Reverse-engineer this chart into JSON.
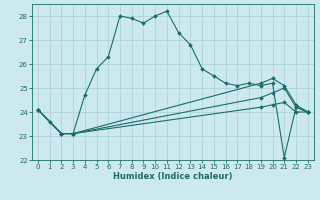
{
  "xlabel": "Humidex (Indice chaleur)",
  "ylabel": "",
  "xlim": [
    -0.5,
    23.5
  ],
  "ylim": [
    22,
    28.5
  ],
  "yticks": [
    22,
    23,
    24,
    25,
    26,
    27,
    28
  ],
  "xticks": [
    0,
    1,
    2,
    3,
    4,
    5,
    6,
    7,
    8,
    9,
    10,
    11,
    12,
    13,
    14,
    15,
    16,
    17,
    18,
    19,
    20,
    21,
    22,
    23
  ],
  "bg_color": "#cce9f0",
  "grid_color": "#afd4dc",
  "line_color": "#1a6e63",
  "lines": [
    {
      "x": [
        0,
        1,
        2,
        3,
        4,
        5,
        6,
        7,
        8,
        9,
        10,
        11,
        12,
        13,
        14,
        15,
        16,
        17,
        18,
        19,
        20,
        21,
        22,
        23
      ],
      "y": [
        24.1,
        23.6,
        23.1,
        23.1,
        24.7,
        25.8,
        26.3,
        28.0,
        27.9,
        27.7,
        28.0,
        28.2,
        27.3,
        26.8,
        25.8,
        25.5,
        25.2,
        25.1,
        25.2,
        25.1,
        25.2,
        22.1,
        24.2,
        24.0
      ]
    },
    {
      "x": [
        0,
        2,
        3,
        19,
        20,
        21,
        22,
        23
      ],
      "y": [
        24.1,
        23.1,
        23.1,
        25.2,
        25.4,
        25.1,
        24.3,
        24.0
      ]
    },
    {
      "x": [
        0,
        2,
        3,
        19,
        20,
        21,
        22,
        23
      ],
      "y": [
        24.1,
        23.1,
        23.1,
        24.6,
        24.8,
        25.0,
        24.2,
        24.0
      ]
    },
    {
      "x": [
        0,
        2,
        3,
        19,
        20,
        21,
        22,
        23
      ],
      "y": [
        24.1,
        23.1,
        23.1,
        24.2,
        24.3,
        24.4,
        24.0,
        24.0
      ]
    }
  ]
}
